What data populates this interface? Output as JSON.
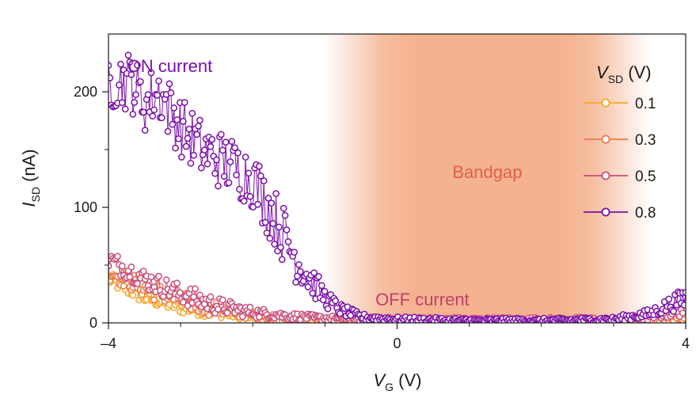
{
  "chart_data": {
    "type": "scatter",
    "title": "",
    "xlabel": {
      "main": "V",
      "sub": "G",
      "unit": " (V)"
    },
    "ylabel": {
      "main": "I",
      "sub": "SD",
      "unit": " (nA)"
    },
    "xlim": [
      -4,
      4
    ],
    "ylim": [
      0,
      250
    ],
    "x_ticks": [
      -4,
      0,
      4
    ],
    "x_tick_labels": [
      "–4",
      "0",
      "4"
    ],
    "x_minor_ticks": [
      -3,
      -2,
      -1,
      1,
      2,
      3
    ],
    "y_ticks": [
      0,
      100,
      200
    ],
    "y_tick_labels": [
      "0",
      "100",
      "200"
    ],
    "grid": false,
    "bandgap": {
      "label": "Bandgap",
      "x_start": -0.6,
      "x_end": 3.1,
      "color": "#f4b28f",
      "label_color": "#e0604a"
    },
    "annotations": [
      {
        "name": "on-current-label",
        "text": "ON current",
        "x": -3.15,
        "y": 222,
        "color": "#7a0fa8"
      },
      {
        "name": "off-current-label",
        "text": "OFF current",
        "x": 0.35,
        "y": 20,
        "color": "#c2406c"
      }
    ],
    "legend": {
      "title": {
        "main": "V",
        "sub": "SD",
        "unit": " (V)"
      },
      "position": "top-right",
      "entries": [
        "0.1",
        "0.3",
        "0.5",
        "0.8"
      ]
    },
    "series": [
      {
        "name": "0.1",
        "color": "#f5a623",
        "summary": [
          [
            -4,
            38
          ],
          [
            -3.5,
            22
          ],
          [
            -3,
            14
          ],
          [
            -2.5,
            9
          ],
          [
            -2,
            5
          ],
          [
            -1.5,
            3
          ],
          [
            -1,
            2
          ],
          [
            0,
            1
          ],
          [
            2,
            1
          ],
          [
            3,
            1
          ],
          [
            4,
            1
          ]
        ],
        "noise": 6
      },
      {
        "name": "0.3",
        "color": "#ee7a45",
        "summary": [
          [
            -4,
            45
          ],
          [
            -3.5,
            30
          ],
          [
            -3,
            20
          ],
          [
            -2.5,
            12
          ],
          [
            -2,
            7
          ],
          [
            -1.5,
            4
          ],
          [
            -1,
            3
          ],
          [
            0,
            2
          ],
          [
            2,
            2
          ],
          [
            3,
            2
          ],
          [
            3.6,
            3
          ],
          [
            4,
            5
          ]
        ],
        "noise": 8
      },
      {
        "name": "0.5",
        "color": "#c94e79",
        "summary": [
          [
            -4,
            55
          ],
          [
            -3.5,
            38
          ],
          [
            -3,
            25
          ],
          [
            -2.5,
            15
          ],
          [
            -2,
            9
          ],
          [
            -1.5,
            6
          ],
          [
            -1,
            4
          ],
          [
            0,
            3
          ],
          [
            2,
            3
          ],
          [
            3,
            3
          ],
          [
            3.5,
            5
          ],
          [
            4,
            12
          ]
        ],
        "noise": 9
      },
      {
        "name": "0.8",
        "color": "#7a0fa8",
        "summary": [
          [
            -4,
            210
          ],
          [
            -3.7,
            210
          ],
          [
            -3.5,
            190
          ],
          [
            -3.3,
            200
          ],
          [
            -3,
            170
          ],
          [
            -2.7,
            150
          ],
          [
            -2.4,
            140
          ],
          [
            -2,
            125
          ],
          [
            -1.6,
            80
          ],
          [
            -1.4,
            55
          ],
          [
            -1.2,
            38
          ],
          [
            -1,
            22
          ],
          [
            -0.8,
            12
          ],
          [
            -0.5,
            5
          ],
          [
            0,
            3
          ],
          [
            1,
            2
          ],
          [
            2,
            2
          ],
          [
            3,
            3
          ],
          [
            3.5,
            8
          ],
          [
            4,
            22
          ]
        ],
        "noise": 26
      }
    ]
  }
}
